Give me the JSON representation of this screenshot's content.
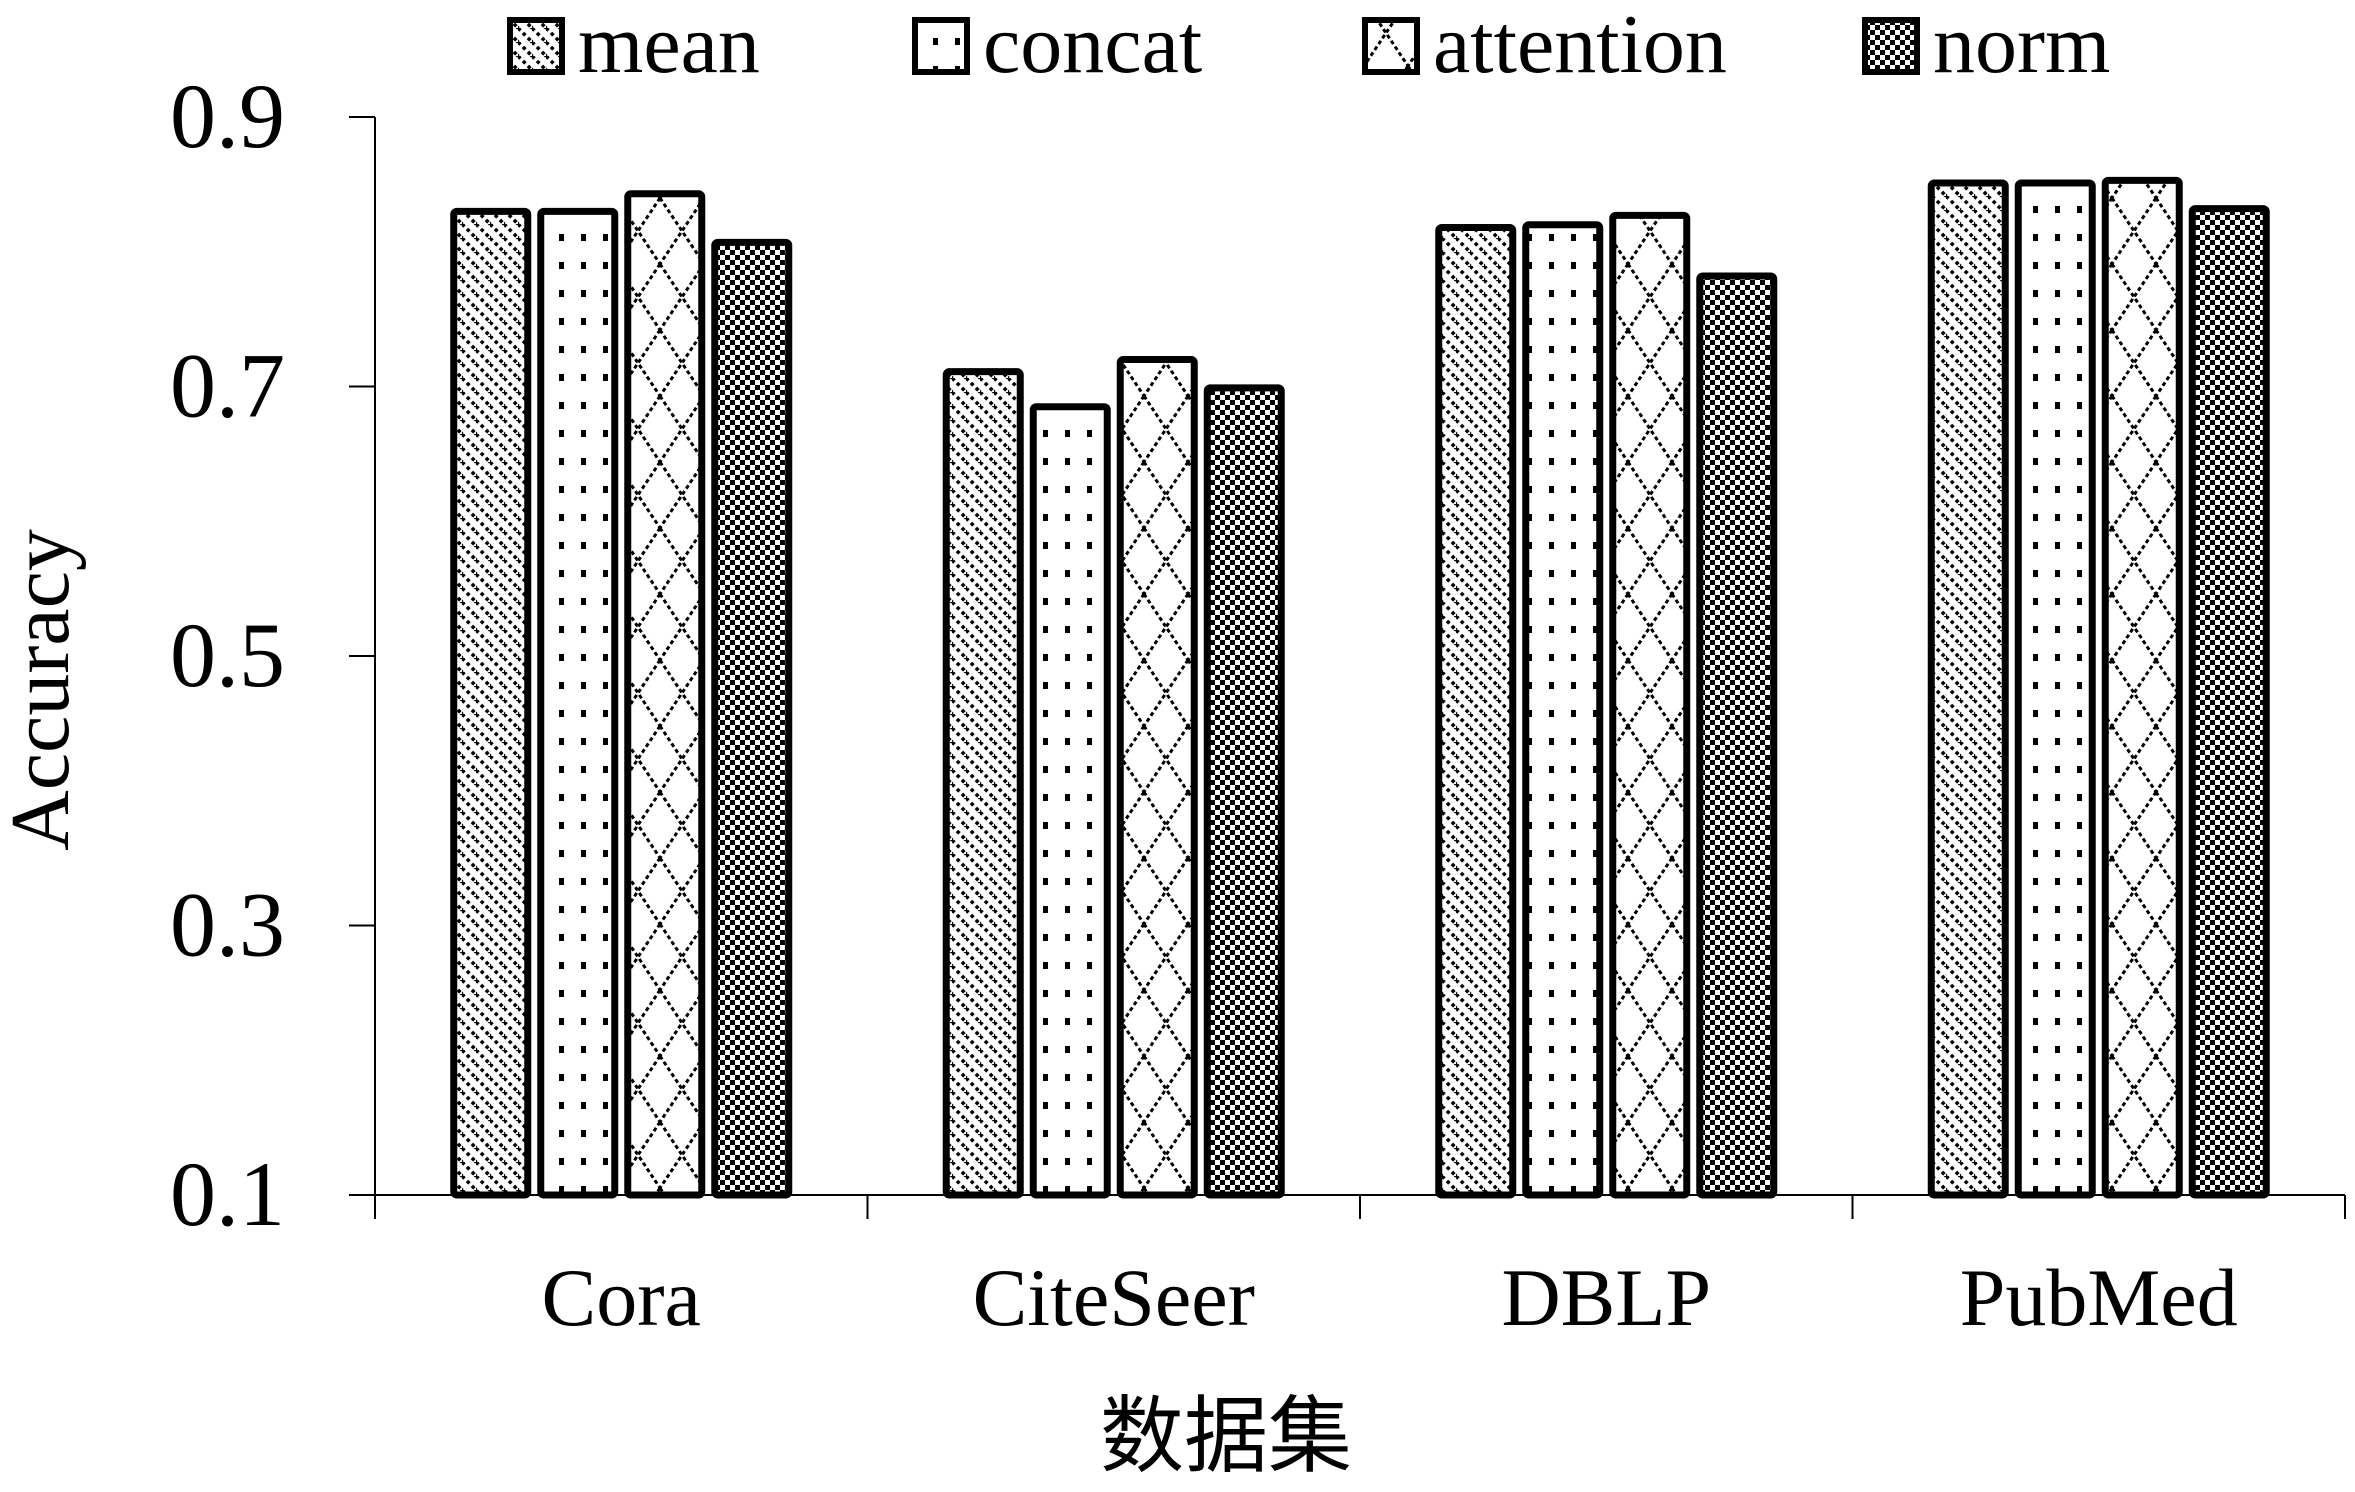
{
  "chart_data": {
    "type": "bar",
    "categories": [
      "Cora",
      "CiteSeer",
      "DBLP",
      "PubMed"
    ],
    "series": [
      {
        "name": "mean",
        "values": [
          0.83,
          0.711,
          0.818,
          0.851
        ]
      },
      {
        "name": "concat",
        "values": [
          0.83,
          0.685,
          0.82,
          0.851
        ]
      },
      {
        "name": "attention",
        "values": [
          0.843,
          0.72,
          0.827,
          0.853
        ]
      },
      {
        "name": "norm",
        "values": [
          0.807,
          0.699,
          0.782,
          0.832
        ]
      }
    ],
    "xlabel": "数据集",
    "ylabel": "Accuracy",
    "ylim": [
      0.1,
      0.9
    ],
    "yticks": [
      "0.1",
      "0.3",
      "0.5",
      "0.7",
      "0.9"
    ],
    "legend_position": "top",
    "grid": false,
    "colors": {
      "bar_fill": "#ffffff",
      "bar_stroke": "#000000",
      "pattern": "#000000"
    },
    "patterns": [
      "diagonal-dots",
      "vertical-dots",
      "diamond-cross",
      "checker"
    ]
  }
}
